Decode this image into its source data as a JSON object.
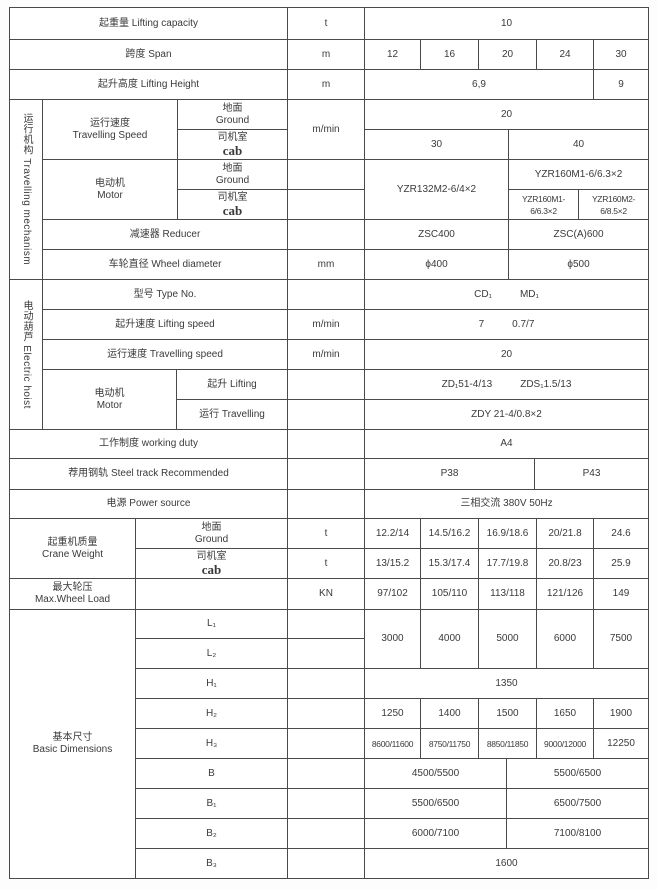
{
  "lifting_capacity": {
    "label": "起重量 Lifting capacity",
    "unit": "t",
    "value": "10"
  },
  "span": {
    "label": "跨度 Span",
    "unit": "m",
    "values": [
      "12",
      "16",
      "20",
      "24",
      "30"
    ]
  },
  "lifting_height": {
    "label": "起升高度 Lifting Height",
    "unit": "m",
    "values": [
      "6,9",
      "9"
    ]
  },
  "travelling_mechanism": {
    "section_label": "运行机构 Travelling mechanism",
    "travelling_speed": {
      "label_cn": "运行速度",
      "label_en": "Travelling Speed",
      "unit": "m/min",
      "ground": {
        "label_cn": "地面",
        "label_en": "Ground",
        "value": "20"
      },
      "cab": {
        "label_cn": "司机室",
        "label_en": "cab",
        "values": [
          "30",
          "40"
        ]
      }
    },
    "motor": {
      "label_cn": "电动机",
      "label_en": "Motor",
      "ground": {
        "label_cn": "地面",
        "label_en": "Ground"
      },
      "cab": {
        "label_cn": "司机室",
        "label_en": "cab"
      },
      "shared_value": "YZR132M2-6/4×2",
      "ground_value": "YZR160M1-6/6.3×2",
      "cab_values": [
        "YZR160M1-6/6.3×2",
        "YZR160M2-6/8.5×2"
      ]
    },
    "reducer": {
      "label": "减速器 Reducer",
      "values": [
        "ZSC400",
        "ZSC(A)600"
      ]
    },
    "wheel_diameter": {
      "label": "车轮直径 Wheel diameter",
      "unit": "mm",
      "values": [
        "ϕ400",
        "ϕ500"
      ]
    }
  },
  "electric_hoist": {
    "section_label": "电动葫芦 Electric hoist",
    "type_no": {
      "label": "型号 Type No.",
      "values": [
        "CD₁",
        "MD₁"
      ]
    },
    "lifting_speed": {
      "label": "起升速度 Lifting speed",
      "unit": "m/min",
      "values": [
        "7",
        "0.7/7"
      ]
    },
    "travelling_speed": {
      "label": "运行速度 Travelling speed",
      "unit": "m/min",
      "value": "20"
    },
    "motor": {
      "label_cn": "电动机",
      "label_en": "Motor",
      "lifting": {
        "label": "起升 Lifting",
        "values": [
          "ZD₁51-4/13",
          "ZDS₁1.5/13"
        ]
      },
      "travelling": {
        "label": "运行 Travelling",
        "value": "ZDY 21-4/0.8×2"
      }
    }
  },
  "working_duty": {
    "label": "工作制度 working duty",
    "value": "A4"
  },
  "steel_track": {
    "label": "荐用钢轨 Steel track Recommended",
    "values": [
      "P38",
      "P43"
    ]
  },
  "power_source": {
    "label": "电源 Power source",
    "value": "三相交流  380V  50Hz"
  },
  "crane_weight": {
    "label_cn": "起重机质量",
    "label_en": "Crane Weight",
    "ground": {
      "label_cn": "地面",
      "label_en": "Ground",
      "unit": "t",
      "values": [
        "12.2/14",
        "14.5/16.2",
        "16.9/18.6",
        "20/21.8",
        "24.6"
      ]
    },
    "cab": {
      "label_cn": "司机室",
      "label_en": "cab",
      "unit": "t",
      "values": [
        "13/15.2",
        "15.3/17.4",
        "17.7/19.8",
        "20.8/23",
        "25.9"
      ]
    }
  },
  "max_wheel_load": {
    "label_cn": "最大轮压",
    "label_en": "Max.Wheel Load",
    "unit": "KN",
    "values": [
      "97/102",
      "105/110",
      "113/118",
      "121/126",
      "149"
    ]
  },
  "basic_dimensions": {
    "label_cn": "基本尺寸",
    "label_en": "Basic Dimensions",
    "L1": {
      "label": "L₁"
    },
    "L2": {
      "label": "L₂"
    },
    "L_values": [
      "3000",
      "4000",
      "5000",
      "6000",
      "7500"
    ],
    "H1": {
      "label": "H₁",
      "value": "1350"
    },
    "H2": {
      "label": "H₂",
      "values": [
        "1250",
        "1400",
        "1500",
        "1650",
        "1900"
      ]
    },
    "H3": {
      "label": "H₃",
      "values": [
        "8600/11600",
        "8750/11750",
        "8850/11850",
        "9000/12000",
        "12250"
      ]
    },
    "B": {
      "label": "B",
      "values": [
        "4500/5500",
        "5500/6500"
      ]
    },
    "B1": {
      "label": "B₁",
      "values": [
        "5500/6500",
        "6500/7500"
      ]
    },
    "B2": {
      "label": "B₂",
      "values": [
        "6000/7100",
        "7100/8100"
      ]
    },
    "B3": {
      "label": "B₃",
      "value": "1600"
    }
  }
}
